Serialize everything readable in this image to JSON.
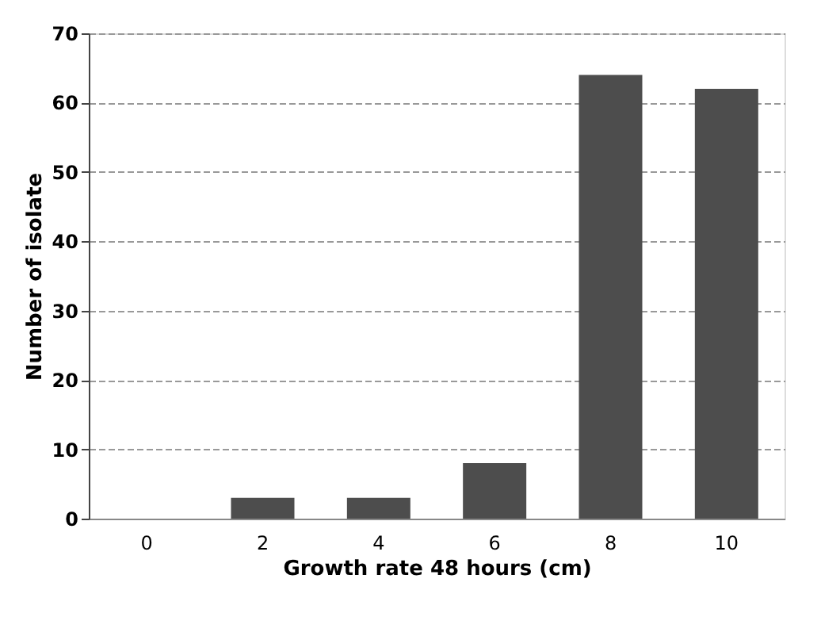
{
  "chart_data": {
    "type": "bar",
    "xlabel": "Growth rate 48 hours (cm)",
    "ylabel": "Number of isolate",
    "categories": [
      "0",
      "2",
      "4",
      "6",
      "8",
      "10"
    ],
    "values": [
      0,
      3,
      3,
      8,
      64,
      62
    ],
    "color": "#4d4d4d",
    "ylim": [
      0,
      70
    ],
    "yticks": [
      0,
      10,
      20,
      30,
      40,
      50,
      60,
      70
    ],
    "grid": "y"
  }
}
